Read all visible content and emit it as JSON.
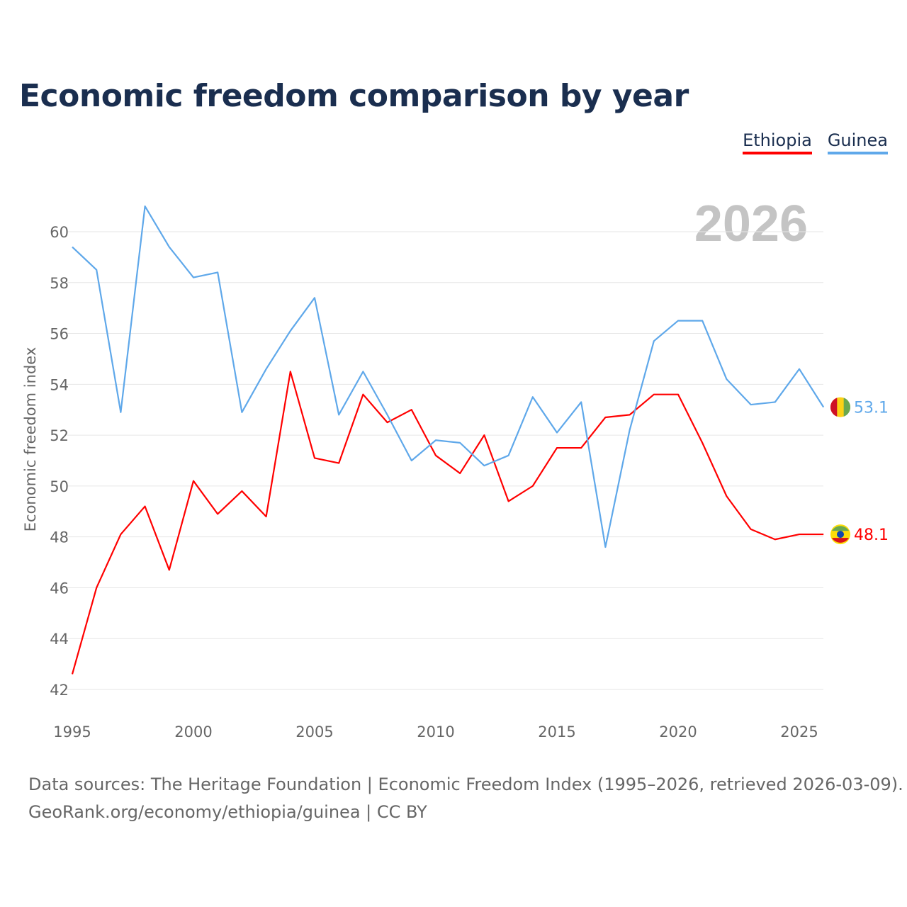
{
  "chart_data": {
    "type": "line",
    "title": "Economic freedom comparison by year",
    "ylabel": "Economic freedom index",
    "xlabel": "",
    "year_watermark": "2026",
    "ylim": [
      42,
      61
    ],
    "yticks": [
      42,
      44,
      46,
      48,
      50,
      52,
      54,
      56,
      58,
      60
    ],
    "xticks": [
      1995,
      2000,
      2005,
      2010,
      2015,
      2020,
      2025
    ],
    "grid": true,
    "legend_position": "top-right",
    "x": [
      1995,
      1996,
      1997,
      1998,
      1999,
      2000,
      2001,
      2002,
      2003,
      2004,
      2005,
      2006,
      2007,
      2008,
      2009,
      2010,
      2011,
      2012,
      2013,
      2014,
      2015,
      2016,
      2017,
      2018,
      2019,
      2020,
      2021,
      2022,
      2023,
      2024,
      2025,
      2026
    ],
    "series": [
      {
        "name": "Ethiopia",
        "color": "#ff0000",
        "end_label": "48.1",
        "values": [
          42.6,
          46.0,
          48.1,
          49.2,
          46.7,
          50.2,
          48.9,
          49.8,
          48.8,
          54.5,
          51.1,
          50.9,
          53.6,
          52.5,
          53.0,
          51.2,
          50.5,
          52.0,
          49.4,
          50.0,
          51.5,
          51.5,
          52.7,
          52.8,
          53.6,
          53.6,
          51.7,
          49.6,
          48.3,
          47.9,
          48.1,
          48.1
        ]
      },
      {
        "name": "Guinea",
        "color": "#5fa8ea",
        "end_label": "53.1",
        "values": [
          59.4,
          58.5,
          52.9,
          61.0,
          59.4,
          58.2,
          58.4,
          52.9,
          54.6,
          56.1,
          57.4,
          52.8,
          54.5,
          52.8,
          51.0,
          51.8,
          51.7,
          50.8,
          51.2,
          53.5,
          52.1,
          53.3,
          47.6,
          52.2,
          55.7,
          56.5,
          56.5,
          54.2,
          53.2,
          53.3,
          54.6,
          53.1
        ]
      }
    ]
  },
  "footer": {
    "line1": "Data sources: The Heritage Foundation | Economic Freedom Index (1995–2026, retrieved 2026-03-09).",
    "line2": "GeoRank.org/economy/ethiopia/guinea | CC BY"
  }
}
